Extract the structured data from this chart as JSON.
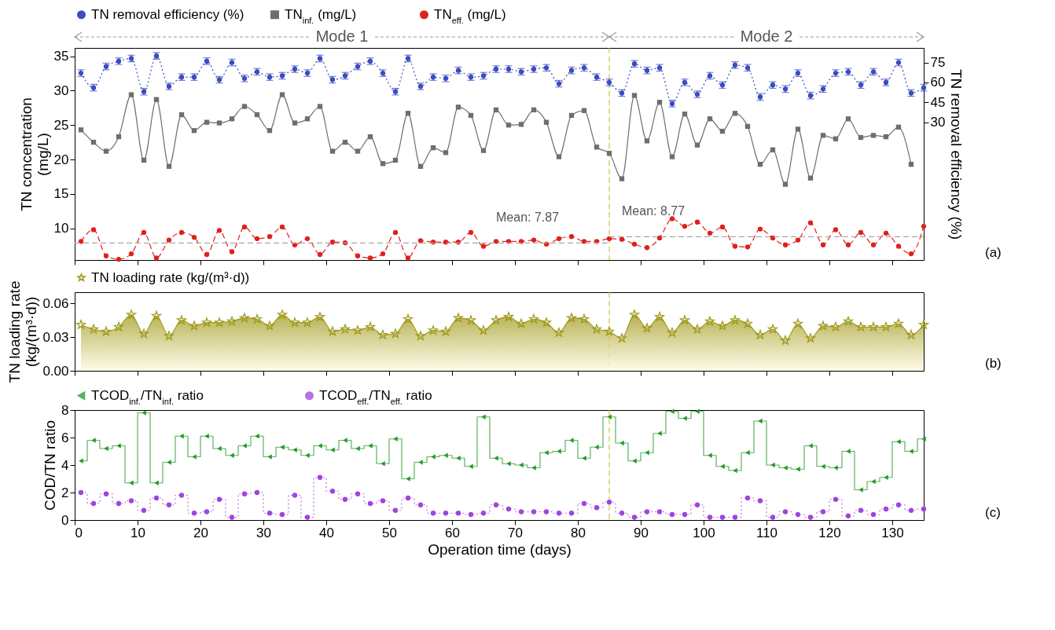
{
  "chart_data": [
    {
      "type": "line",
      "ylabel": "TN concentration (mg/L)",
      "y2label": "TN removal efficiency (%)",
      "x": [
        1,
        3,
        5,
        7,
        9,
        11,
        13,
        15,
        17,
        19,
        21,
        23,
        25,
        27,
        29,
        31,
        33,
        35,
        37,
        39,
        41,
        43,
        45,
        47,
        49,
        51,
        53,
        55,
        57,
        59,
        61,
        63,
        65,
        67,
        69,
        71,
        73,
        75,
        77,
        79,
        81,
        83,
        85,
        87,
        89,
        91,
        93,
        95,
        97,
        99,
        101,
        103,
        105,
        107,
        109,
        111,
        113,
        115,
        117,
        119,
        121,
        123,
        125,
        127,
        129,
        131,
        133,
        135
      ],
      "xlim": [
        0,
        135
      ],
      "xticks": [
        0,
        10,
        20,
        30,
        40,
        50,
        60,
        70,
        80,
        90,
        100,
        110,
        120,
        130
      ],
      "ylim": [
        5.4,
        36.2
      ],
      "yticks": [
        10,
        15,
        20,
        25,
        30,
        35
      ],
      "y2lim": [
        -74,
        86
      ],
      "y2ticks": [
        30,
        45,
        60,
        75
      ],
      "tick_labels": "y",
      "legend": "top",
      "series": [
        {
          "name": "TN removal efficiency (%)",
          "axis": "y2",
          "color": "#3b4cc0",
          "marker": "circle",
          "line_style": "dotted",
          "values": [
            67,
            56,
            72,
            76,
            78,
            53,
            80,
            57,
            64,
            64,
            76,
            62,
            75,
            63,
            68,
            64,
            65,
            70,
            67,
            78,
            62,
            65,
            72,
            76,
            67,
            53,
            78,
            57,
            64,
            63,
            69,
            64,
            65,
            70,
            70,
            68,
            70,
            71,
            59,
            69,
            71,
            64,
            60,
            52,
            74,
            69,
            71,
            44,
            60,
            51,
            65,
            58,
            73,
            71,
            49,
            58,
            55,
            67,
            50,
            55,
            67,
            68,
            58,
            68,
            60,
            75,
            52,
            56
          ],
          "errors": [
            2.5,
            2.5,
            2.5,
            2.5,
            2.5,
            2.5,
            2.5,
            2.5,
            2.5,
            2.5,
            2.5,
            2.5,
            2.5,
            2.5,
            2.5,
            2.5,
            2.5,
            2.5,
            2.5,
            2.5,
            2.5,
            2.5,
            2.5,
            2.5,
            2.5,
            2.5,
            2.5,
            2.5,
            2.5,
            2.5,
            2.5,
            2.5,
            2.5,
            2.5,
            2.5,
            2.5,
            2.5,
            2.5,
            2.5,
            2.5,
            2.5,
            2.5,
            2.5,
            2.5,
            2.5,
            2.5,
            2.5,
            2.5,
            2.5,
            2.5,
            2.5,
            2.5,
            2.5,
            2.5,
            2.5,
            2.5,
            2.5,
            2.5,
            2.5,
            2.5,
            2.5,
            2.5,
            2.5,
            2.5,
            2.5,
            2.5,
            2.5,
            2.5
          ]
        },
        {
          "name": "TN$_{inf.}$ (mg/L)",
          "color": "#6e6e6e",
          "marker": "square",
          "line_style": "solid",
          "values": [
            24.3,
            22.5,
            21.2,
            23.3,
            29.4,
            19.9,
            28.7,
            19.0,
            26.5,
            24.2,
            25.4,
            25.3,
            25.9,
            27.7,
            26.5,
            24.2,
            29.4,
            25.3,
            25.9,
            27.7,
            21.2,
            22.5,
            21.2,
            23.3,
            19.4,
            19.9,
            26.7,
            19.0,
            21.7,
            21.0,
            27.6,
            26.4,
            21.3,
            27.2,
            25.0,
            25.1,
            27.2,
            25.4,
            20.4,
            26.4,
            27.1,
            21.8,
            20.9,
            17.2,
            29.3,
            22.7,
            28.3,
            20.4,
            26.6,
            22.1,
            25.9,
            24.1,
            26.7,
            24.8,
            19.3,
            21.4,
            16.4,
            24.4,
            17.3,
            23.5,
            23.0,
            25.9,
            23.2,
            23.5,
            23.3,
            24.7,
            19.3,
            null
          ]
        },
        {
          "name": "TN$_{eff.}$ (mg/L)",
          "color": "#e0201b",
          "marker": "circle",
          "line_style": "dashed",
          "values": [
            8.1,
            9.8,
            6.0,
            5.5,
            6.3,
            9.4,
            5.7,
            8.3,
            9.4,
            8.7,
            6.2,
            9.7,
            6.6,
            10.2,
            8.5,
            8.8,
            10.2,
            7.6,
            8.5,
            6.2,
            8.0,
            7.9,
            6.0,
            5.7,
            6.3,
            9.4,
            5.7,
            8.2,
            8.0,
            8.0,
            8.0,
            9.4,
            7.4,
            8.1,
            8.1,
            8.1,
            8.3,
            7.7,
            8.5,
            8.8,
            8.1,
            8.1,
            8.5,
            8.4,
            7.7,
            7.2,
            8.6,
            11.4,
            10.3,
            10.9,
            9.3,
            10.2,
            7.4,
            7.3,
            9.9,
            8.6,
            7.6,
            8.3,
            10.8,
            7.6,
            9.8,
            7.6,
            9.4,
            7.6,
            9.3,
            7.4,
            6.3,
            10.3
          ]
        },
        {
          "color": "#a8a8a8",
          "marker": "none",
          "line_style": "dashed",
          "x": [
            0,
            85
          ],
          "values": [
            7.87,
            7.87
          ]
        },
        {
          "color": "#a8a8a8",
          "marker": "none",
          "line_style": "dashed",
          "x": [
            85,
            135
          ],
          "values": [
            8.77,
            8.77
          ]
        }
      ],
      "ref_lines": [
        {
          "axis": "x",
          "value": 85,
          "color": "#c8b820",
          "line_style": "dashed"
        }
      ],
      "annotations": [
        {
          "text": "Mean: 7.87",
          "x": 67,
          "y": 7.87
        },
        {
          "text": "Mean: 8.77",
          "x": 87,
          "y": 8.77
        },
        "Mode 1",
        "Mode 2",
        "(a)"
      ]
    },
    {
      "type": "area",
      "ylabel": "TN loading rate (kg/(m³·d))",
      "x": [
        1,
        3,
        5,
        7,
        9,
        11,
        13,
        15,
        17,
        19,
        21,
        23,
        25,
        27,
        29,
        31,
        33,
        35,
        37,
        39,
        41,
        43,
        45,
        47,
        49,
        51,
        53,
        55,
        57,
        59,
        61,
        63,
        65,
        67,
        69,
        71,
        73,
        75,
        77,
        79,
        81,
        83,
        85,
        87,
        89,
        91,
        93,
        95,
        97,
        99,
        101,
        103,
        105,
        107,
        109,
        111,
        113,
        115,
        117,
        119,
        121,
        123,
        125,
        127,
        129,
        131,
        133,
        135
      ],
      "xlim": [
        0,
        135
      ],
      "xticks": [
        0,
        10,
        20,
        30,
        40,
        50,
        60,
        70,
        80,
        90,
        100,
        110,
        120,
        130
      ],
      "ylim": [
        0,
        0.07
      ],
      "yticks": [
        {
          "value": 0,
          "label": "0.00"
        },
        {
          "value": 0.03,
          "label": "0.03"
        },
        {
          "value": 0.06,
          "label": "0.06"
        }
      ],
      "tick_labels": "y",
      "legend": "top",
      "series": [
        {
          "name": "TN loading rate (kg/(m³·d))",
          "color": "#a09a1c",
          "marker": "star",
          "line_style": "solid",
          "values": [
            0.041,
            0.037,
            0.035,
            0.039,
            0.05,
            0.033,
            0.049,
            0.031,
            0.045,
            0.04,
            0.043,
            0.043,
            0.044,
            0.047,
            0.046,
            0.04,
            0.05,
            0.043,
            0.043,
            0.048,
            0.035,
            0.037,
            0.036,
            0.039,
            0.032,
            0.033,
            0.046,
            0.031,
            0.036,
            0.035,
            0.047,
            0.045,
            0.036,
            0.045,
            0.048,
            0.042,
            0.046,
            0.043,
            0.034,
            0.047,
            0.046,
            0.037,
            0.035,
            0.029,
            0.05,
            0.038,
            0.048,
            0.034,
            0.045,
            0.037,
            0.044,
            0.04,
            0.045,
            0.042,
            0.032,
            0.037,
            0.027,
            0.042,
            0.029,
            0.04,
            0.039,
            0.044,
            0.039,
            0.039,
            0.039,
            0.042,
            0.032,
            0.041
          ]
        }
      ],
      "ref_lines": [
        {
          "axis": "x",
          "value": 85,
          "color": "#c8b820",
          "line_style": "dashed"
        }
      ],
      "annotations": [
        "(b)"
      ]
    },
    {
      "type": "step",
      "ylabel": "COD/TN ratio",
      "xlabel": "Operation time (days)",
      "x": [
        1,
        3,
        5,
        7,
        9,
        11,
        13,
        15,
        17,
        19,
        21,
        23,
        25,
        27,
        29,
        31,
        33,
        35,
        37,
        39,
        41,
        43,
        45,
        47,
        49,
        51,
        53,
        55,
        57,
        59,
        61,
        63,
        65,
        67,
        69,
        71,
        73,
        75,
        77,
        79,
        81,
        83,
        85,
        87,
        89,
        91,
        93,
        95,
        97,
        99,
        101,
        103,
        105,
        107,
        109,
        111,
        113,
        115,
        117,
        119,
        121,
        123,
        125,
        127,
        129,
        131,
        133,
        135
      ],
      "xlim": [
        0,
        135
      ],
      "xticks": [
        0,
        10,
        20,
        30,
        40,
        50,
        60,
        70,
        80,
        90,
        100,
        110,
        120,
        130
      ],
      "ylim": [
        0,
        8
      ],
      "yticks": [
        0,
        2,
        4,
        6,
        8
      ],
      "legend": "top",
      "series": [
        {
          "name": "TCOD$_{inf.}$/TN$_{inf.}$ ratio",
          "color": "#229a2a",
          "marker": "triangle",
          "line_style": "solid",
          "values": [
            4.3,
            5.8,
            5.2,
            5.4,
            2.7,
            7.8,
            2.7,
            4.2,
            6.1,
            4.6,
            6.1,
            5.2,
            4.7,
            5.4,
            6.1,
            4.6,
            5.3,
            5.1,
            4.7,
            5.4,
            5.1,
            5.8,
            5.2,
            5.4,
            4.1,
            5.9,
            3.0,
            4.2,
            4.6,
            4.7,
            4.5,
            3.9,
            7.5,
            4.5,
            4.1,
            4.0,
            3.8,
            4.9,
            5.0,
            5.8,
            4.5,
            5.3,
            7.5,
            5.6,
            4.3,
            4.9,
            6.3,
            7.9,
            7.4,
            7.9,
            4.7,
            3.9,
            3.6,
            4.9,
            7.2,
            4.0,
            3.8,
            3.7,
            5.4,
            3.9,
            3.8,
            5.0,
            2.2,
            2.8,
            3.1,
            5.7,
            5.0,
            5.9
          ]
        },
        {
          "name": "TCOD$_{eff.}$/TN$_{eff.}$ ratio",
          "color": "#a043e0",
          "marker": "circle",
          "line_style": "dotted",
          "values": [
            2.0,
            1.2,
            1.9,
            1.2,
            1.4,
            0.7,
            1.6,
            1.1,
            1.8,
            0.5,
            0.6,
            1.5,
            0.2,
            1.9,
            2.0,
            0.5,
            0.4,
            1.8,
            0.2,
            3.1,
            2.1,
            1.5,
            1.9,
            1.2,
            1.4,
            0.7,
            1.6,
            1.1,
            0.5,
            0.5,
            0.5,
            0.4,
            0.5,
            1.1,
            0.8,
            0.6,
            0.6,
            0.6,
            0.5,
            0.5,
            1.2,
            0.9,
            1.3,
            0.5,
            0.2,
            0.6,
            0.6,
            0.4,
            0.4,
            1.1,
            0.2,
            0.2,
            0.2,
            1.6,
            1.4,
            0.2,
            0.6,
            0.4,
            0.2,
            0.6,
            1.5,
            0.3,
            0.7,
            0.4,
            0.8,
            1.1,
            0.7,
            0.8
          ]
        }
      ],
      "ref_lines": [
        {
          "axis": "x",
          "value": 85,
          "color": "#c8b820",
          "line_style": "dashed"
        }
      ],
      "annotations": [
        "(c)"
      ]
    }
  ]
}
